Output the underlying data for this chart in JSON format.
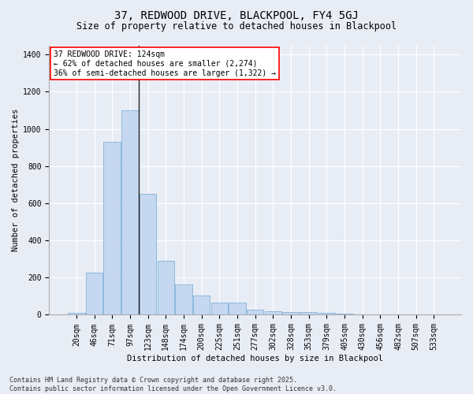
{
  "title": "37, REDWOOD DRIVE, BLACKPOOL, FY4 5GJ",
  "subtitle": "Size of property relative to detached houses in Blackpool",
  "xlabel": "Distribution of detached houses by size in Blackpool",
  "ylabel": "Number of detached properties",
  "bar_color": "#c5d8f0",
  "bar_edge_color": "#6fa8d4",
  "background_color": "#e8edf5",
  "categories": [
    "20sqm",
    "46sqm",
    "71sqm",
    "97sqm",
    "123sqm",
    "148sqm",
    "174sqm",
    "200sqm",
    "225sqm",
    "251sqm",
    "277sqm",
    "302sqm",
    "328sqm",
    "353sqm",
    "379sqm",
    "405sqm",
    "430sqm",
    "456sqm",
    "482sqm",
    "507sqm",
    "533sqm"
  ],
  "values": [
    10,
    225,
    930,
    1100,
    650,
    290,
    165,
    105,
    65,
    65,
    28,
    20,
    13,
    13,
    10,
    5,
    1,
    1,
    1,
    2,
    0
  ],
  "vline_index": 4,
  "vline_color": "#222222",
  "annotation_line1": "37 REDWOOD DRIVE: 124sqm",
  "annotation_line2": "← 62% of detached houses are smaller (2,274)",
  "annotation_line3": "36% of semi-detached houses are larger (1,322) →",
  "annotation_box_color": "white",
  "annotation_box_edge_color": "red",
  "footnote": "Contains HM Land Registry data © Crown copyright and database right 2025.\nContains public sector information licensed under the Open Government Licence v3.0.",
  "ylim": [
    0,
    1450
  ],
  "yticks": [
    0,
    200,
    400,
    600,
    800,
    1000,
    1200,
    1400
  ],
  "grid_color": "#ffffff",
  "title_fontsize": 10,
  "subtitle_fontsize": 8.5,
  "axis_label_fontsize": 7.5,
  "tick_fontsize": 7,
  "annotation_fontsize": 7,
  "footnote_fontsize": 6
}
